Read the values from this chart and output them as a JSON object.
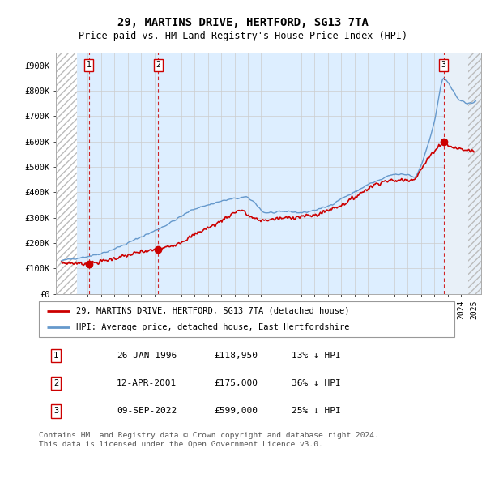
{
  "title": "29, MARTINS DRIVE, HERTFORD, SG13 7TA",
  "subtitle": "Price paid vs. HM Land Registry's House Price Index (HPI)",
  "ylim": [
    0,
    950000
  ],
  "yticks": [
    0,
    100000,
    200000,
    300000,
    400000,
    500000,
    600000,
    700000,
    800000,
    900000
  ],
  "ytick_labels": [
    "£0",
    "£100K",
    "£200K",
    "£300K",
    "£400K",
    "£500K",
    "£600K",
    "£700K",
    "£800K",
    "£900K"
  ],
  "xlim_start": 1993.6,
  "xlim_end": 2025.5,
  "hatch_end": 1995.17,
  "future_start": 2022.7,
  "sale_dates": [
    1996.07,
    2001.28,
    2022.69
  ],
  "sale_prices": [
    118950,
    175000,
    599000
  ],
  "sale_labels": [
    "1",
    "2",
    "3"
  ],
  "legend_line1": "29, MARTINS DRIVE, HERTFORD, SG13 7TA (detached house)",
  "legend_line2": "HPI: Average price, detached house, East Hertfordshire",
  "table_data": [
    [
      "1",
      "26-JAN-1996",
      "£118,950",
      "13% ↓ HPI"
    ],
    [
      "2",
      "12-APR-2001",
      "£175,000",
      "36% ↓ HPI"
    ],
    [
      "3",
      "09-SEP-2022",
      "£599,000",
      "25% ↓ HPI"
    ]
  ],
  "footnote": "Contains HM Land Registry data © Crown copyright and database right 2024.\nThis data is licensed under the Open Government Licence v3.0.",
  "red_color": "#cc0000",
  "blue_color": "#6699cc",
  "bg_color": "#ddeeff",
  "future_color": "#e8f0f8",
  "grid_color": "#cccccc",
  "hatch_color": "#bbbbbb"
}
